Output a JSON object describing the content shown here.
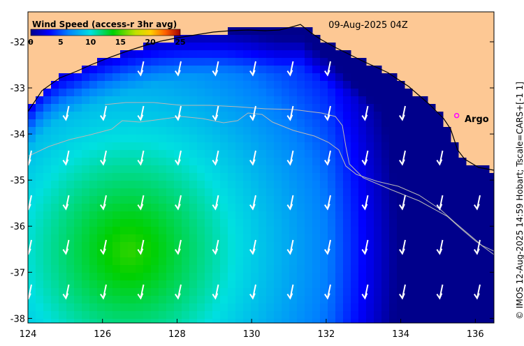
{
  "map": {
    "title": "Wind Speed (access-r 3hr avg)",
    "datetime": "09-Aug-2025 04Z",
    "credit": "© IMOS 12-Aug-2025 14:59 Hobart; Tscale=CARS+[-1 1]",
    "colorbar": {
      "ticks": [
        "0",
        "5",
        "10",
        "15",
        "20",
        "25"
      ],
      "range": [
        0,
        25
      ],
      "colors": [
        "#00008b",
        "#0000ff",
        "#0080ff",
        "#00e0e0",
        "#00d000",
        "#c0e000",
        "#ffd000",
        "#ff6000",
        "#a00000"
      ]
    },
    "x_ticks": [
      "124",
      "126",
      "128",
      "130",
      "132",
      "134",
      "136"
    ],
    "y_ticks": [
      "-32",
      "-33",
      "-34",
      "-35",
      "-36",
      "-37",
      "-38"
    ],
    "lon_range": [
      124,
      136.5
    ],
    "lat_range": [
      -38.1,
      -31.35
    ],
    "marker": {
      "label": "Argo",
      "lon": 135.5,
      "lat": -33.6,
      "color": "#ff00ff"
    },
    "land_color": "#fdc894",
    "wind_direction": "from the north (southward arrows)"
  }
}
